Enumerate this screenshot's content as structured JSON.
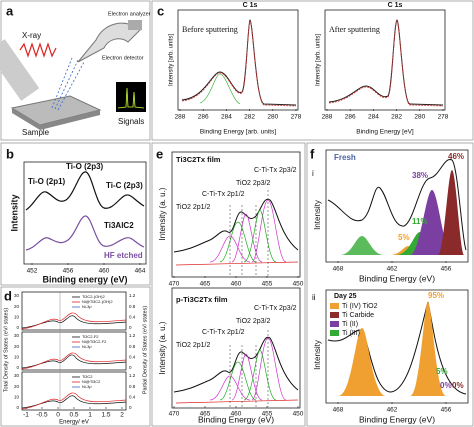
{
  "panels": {
    "a": {
      "label": "a",
      "xray": "X-ray",
      "analyzer": "Electron analyzer",
      "detector": "Electron detector",
      "sample": "Sample",
      "signals": "Signals"
    },
    "c": {
      "label": "c",
      "title": "C 1s",
      "left_note": "Before sputtering",
      "right_note": "After sputtering",
      "y_label": "Intensity [arb. units]",
      "left_x_label": "Binding Energy [arb. units]",
      "right_x_label": "Binding Energy [eV]",
      "xticks": [
        "288",
        "286",
        "284",
        "282",
        "280",
        "278"
      ]
    },
    "b": {
      "label": "b",
      "peak_1": "Ti-O (2p3)",
      "peak_2": "Ti-O (2p1)",
      "peak_3": "Ti-C (2p3)",
      "sample_1": "Ti3AlC2",
      "sample_2": "HF etched",
      "y_label": "Intensity",
      "x_label": "Binding energy (eV)",
      "xticks": [
        "452",
        "456",
        "460",
        "464"
      ]
    },
    "d": {
      "label": "d",
      "legends": [
        [
          "Ti3C2-(OH)2",
          "Ni@Ti3C2-(OH)2",
          "Ni-3p"
        ],
        [
          "Ti3C2-F2",
          "Ni@Ti3C2-F2",
          "Ni-3p"
        ],
        [
          "Ti3C2",
          "Ni@Ti3C2",
          "Ni-3p"
        ]
      ],
      "y_label": "Total Density of States (eV/ states)",
      "y2_label": "Partial Density of States (eV/ states)",
      "x_label": "Energy/ eV",
      "xticks": [
        "-1",
        "-0.5",
        "0",
        "0.5",
        "1",
        "1.5",
        "2"
      ],
      "yticks": [
        "0",
        "10",
        "20",
        "30"
      ],
      "y2ticks": [
        "0",
        "0.4",
        "0.8",
        "1.2"
      ]
    },
    "e": {
      "label": "e",
      "top_title": "Ti3C2Tx film",
      "bottom_title": "p-Ti3C2Tx film",
      "peaks": [
        "C-Ti-Tx 2p3/2",
        "TiO2 2p3/2",
        "C-Ti-Tx 2p1/2",
        "TiO2 2p1/2"
      ],
      "y_label": "Intensity (a. u.)",
      "x_label": "Binding Energy (eV)",
      "xticks": [
        "470",
        "465",
        "460",
        "455",
        "450"
      ]
    },
    "f": {
      "label": "f",
      "top_label": "i",
      "top_title": "Fresh",
      "top_values": [
        "46%",
        "38%",
        "11%",
        "5%"
      ],
      "bottom_label": "ii",
      "bottom_title": "Day 25",
      "legend": [
        "Ti (IV) TiO2",
        "Ti Carbide",
        "Ti (II)",
        "Ti (III)"
      ],
      "bottom_values": [
        "95%",
        "5%",
        "0%",
        "0%"
      ],
      "y_label": "Intensity",
      "x_label": "Binding Energy (eV)",
      "xticks": [
        "468",
        "462",
        "456"
      ]
    }
  }
}
